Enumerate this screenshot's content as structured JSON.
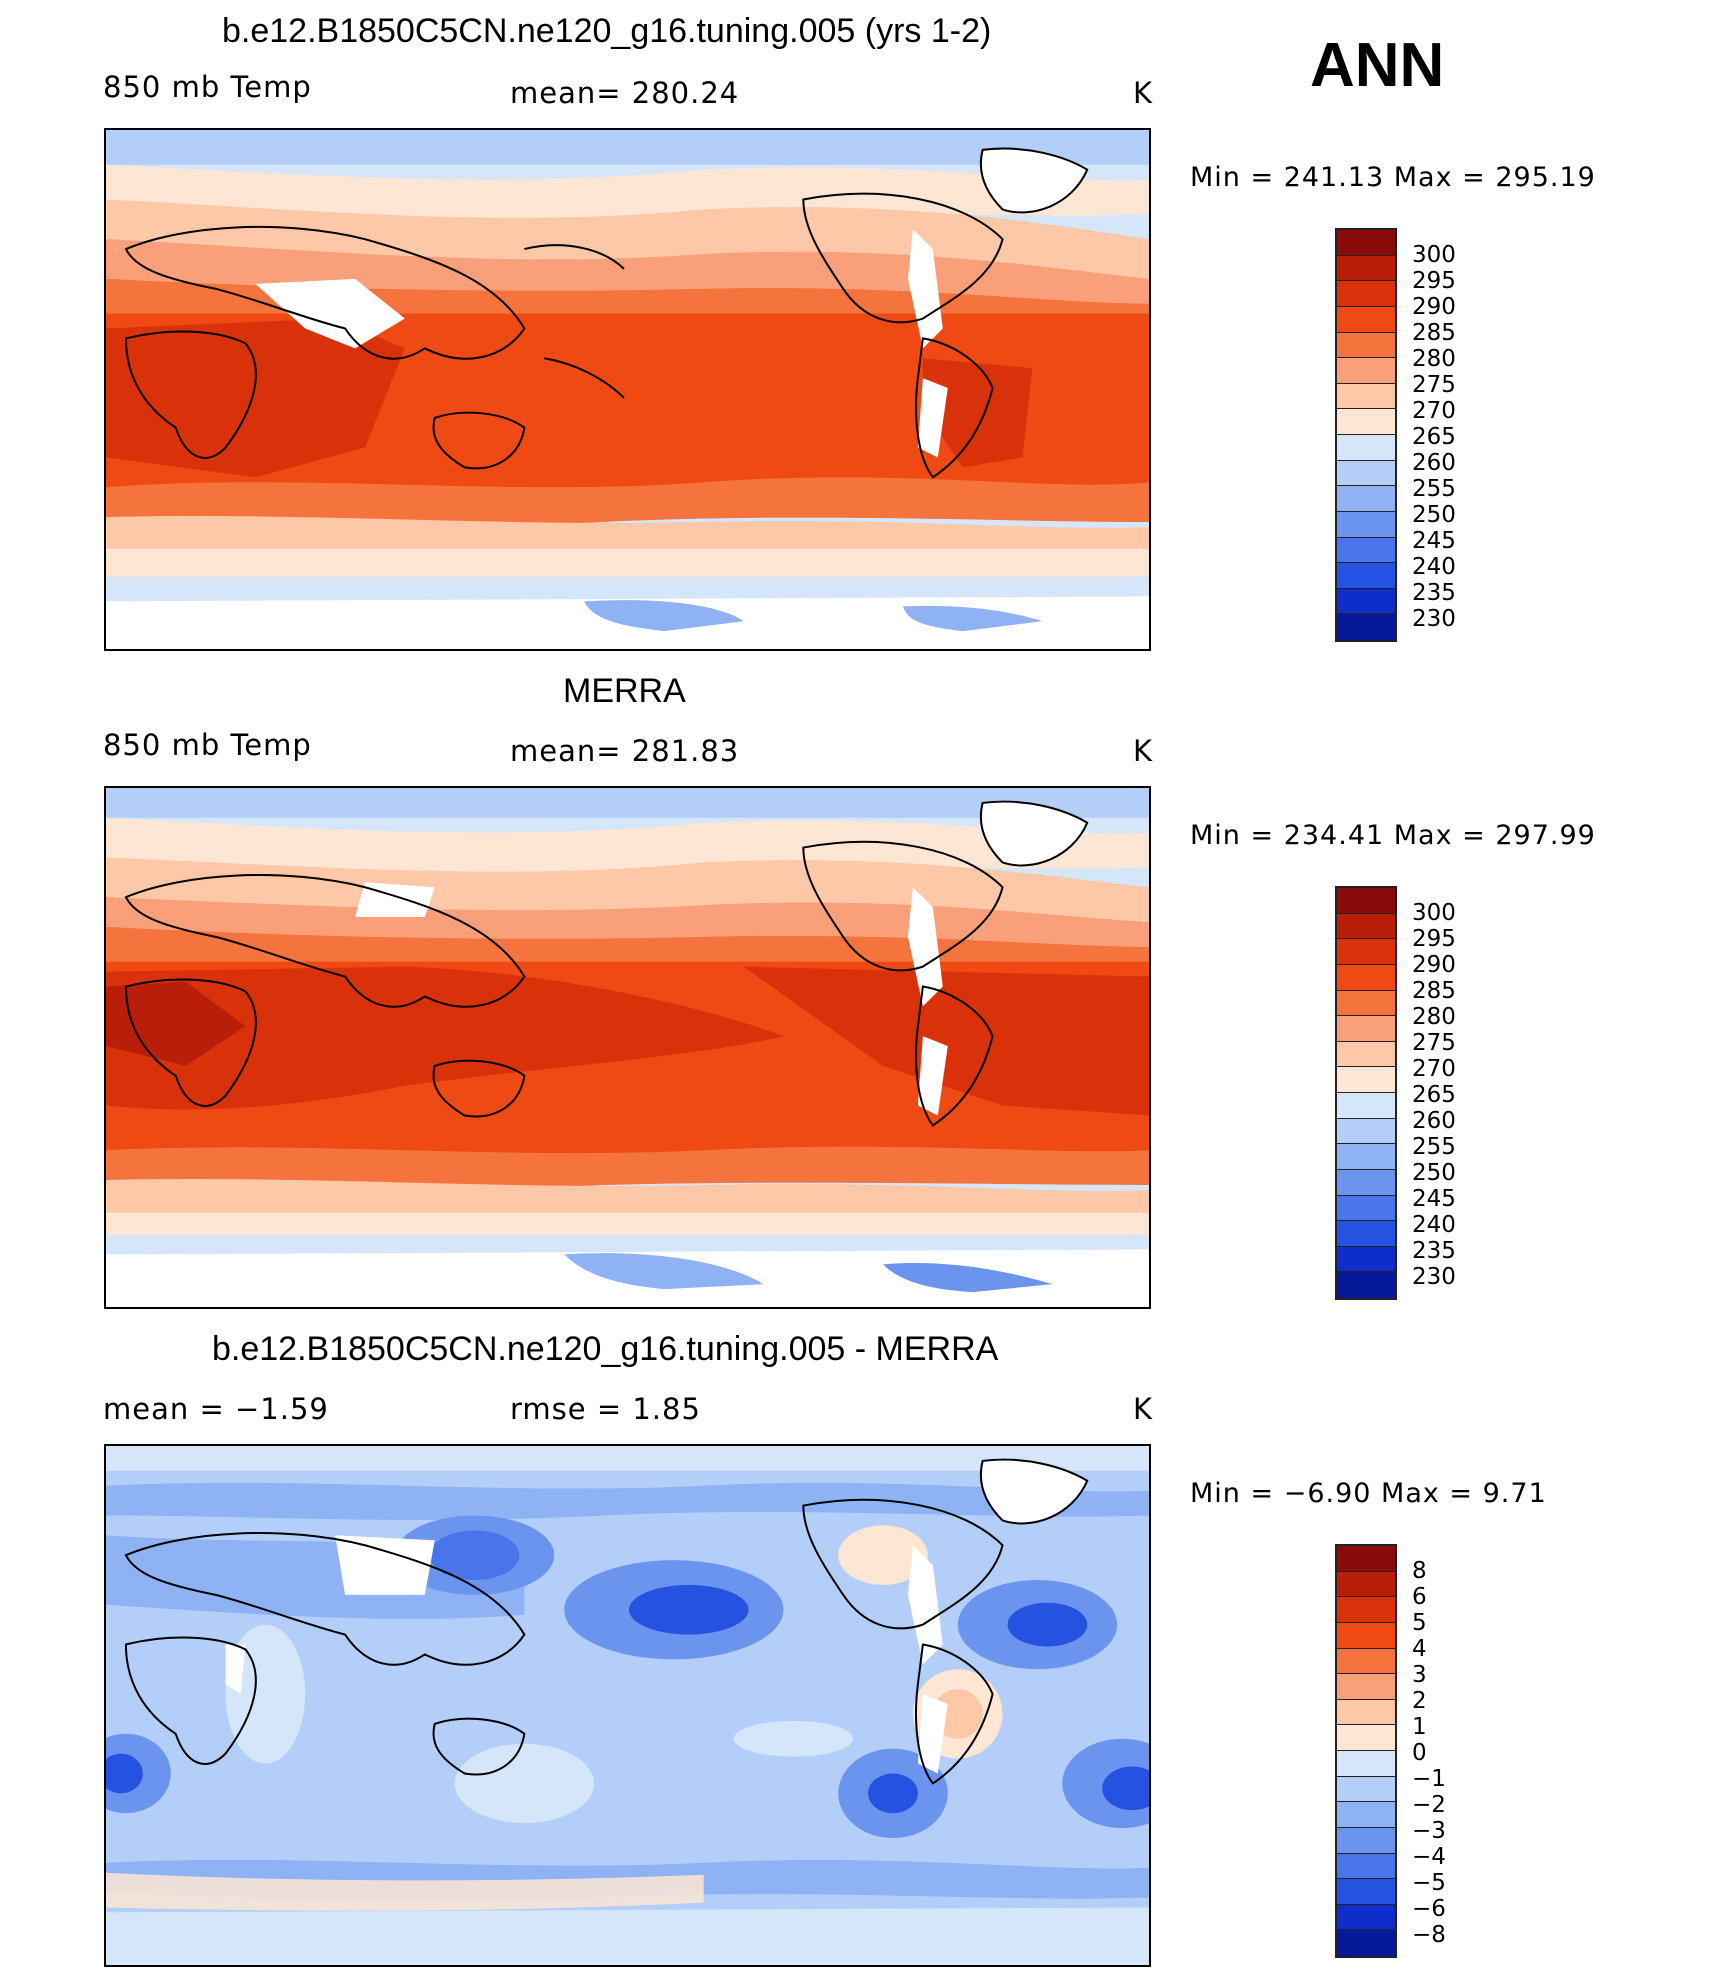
{
  "season_label": "ANN",
  "panels": [
    {
      "title": "b.e12.B1850C5CN.ne120_g16.tuning.005 (yrs 1-2)",
      "left_label": "850 mb Temp",
      "center_label": "mean=  280.24",
      "units": "K",
      "minmax": "Min  =  241.13  Max  =  295.19",
      "colorbar_labels": [
        "300",
        "295",
        "290",
        "285",
        "280",
        "275",
        "270",
        "265",
        "260",
        "255",
        "250",
        "245",
        "240",
        "235",
        "230"
      ],
      "colorbar_colors": [
        "#8b0a0a",
        "#b81e0a",
        "#d9320a",
        "#f04a14",
        "#f5733c",
        "#f9a07a",
        "#fcc8a8",
        "#fde6d4",
        "#d5e6fa",
        "#b3cef8",
        "#8fb2f4",
        "#6b94ef",
        "#4a74ea",
        "#2552e0",
        "#0f2ccc",
        "#061a99"
      ]
    },
    {
      "title": "MERRA",
      "left_label": "850 mb Temp",
      "center_label": "mean=  281.83",
      "units": "K",
      "minmax": "Min  =  234.41  Max  =  297.99",
      "colorbar_labels": [
        "300",
        "295",
        "290",
        "285",
        "280",
        "275",
        "270",
        "265",
        "260",
        "255",
        "250",
        "245",
        "240",
        "235",
        "230"
      ],
      "colorbar_colors": [
        "#8b0a0a",
        "#b81e0a",
        "#d9320a",
        "#f04a14",
        "#f5733c",
        "#f9a07a",
        "#fcc8a8",
        "#fde6d4",
        "#d5e6fa",
        "#b3cef8",
        "#8fb2f4",
        "#6b94ef",
        "#4a74ea",
        "#2552e0",
        "#0f2ccc",
        "#061a99"
      ]
    },
    {
      "title": "b.e12.B1850C5CN.ne120_g16.tuning.005 - MERRA",
      "left_label": "mean  =    −1.59",
      "center_label": "rmse  =     1.85",
      "units": "K",
      "minmax": "Min  =    −6.90  Max  =      9.71",
      "colorbar_labels": [
        "8",
        "6",
        "5",
        "4",
        "3",
        "2",
        "1",
        "0",
        "−1",
        "−2",
        "−3",
        "−4",
        "−5",
        "−6",
        "−8"
      ],
      "colorbar_colors": [
        "#8b0a0a",
        "#b81e0a",
        "#d9320a",
        "#f04a14",
        "#f5733c",
        "#f9a07a",
        "#fcc8a8",
        "#fde6d4",
        "#d5e6fa",
        "#b3cef8",
        "#8fb2f4",
        "#6b94ef",
        "#4a74ea",
        "#2552e0",
        "#0f2ccc",
        "#061a99"
      ]
    }
  ]
}
